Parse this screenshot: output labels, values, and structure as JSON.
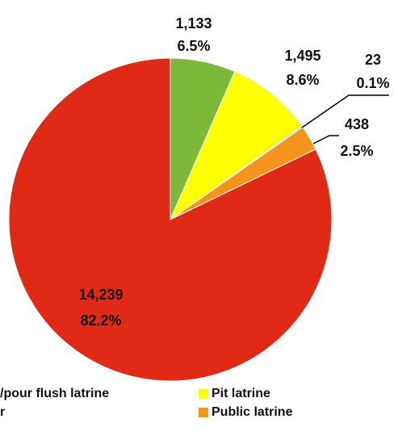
{
  "chart_data": {
    "type": "pie",
    "categories": [
      "/pour flush latrine",
      "Pit latrine",
      null,
      "Public latrine",
      "r"
    ],
    "values": [
      1133,
      1495,
      23,
      438,
      14239
    ],
    "value_labels": [
      "1,133",
      "1,495",
      "23",
      "438",
      "14,239"
    ],
    "percent_labels": [
      "6.5%",
      "8.6%",
      "0.1%",
      "2.5%",
      "82.2%"
    ],
    "colors": [
      "#7cb83a",
      "#ffff00",
      "#2aa7df",
      "#f7941d",
      "#e02a16"
    ]
  }
}
